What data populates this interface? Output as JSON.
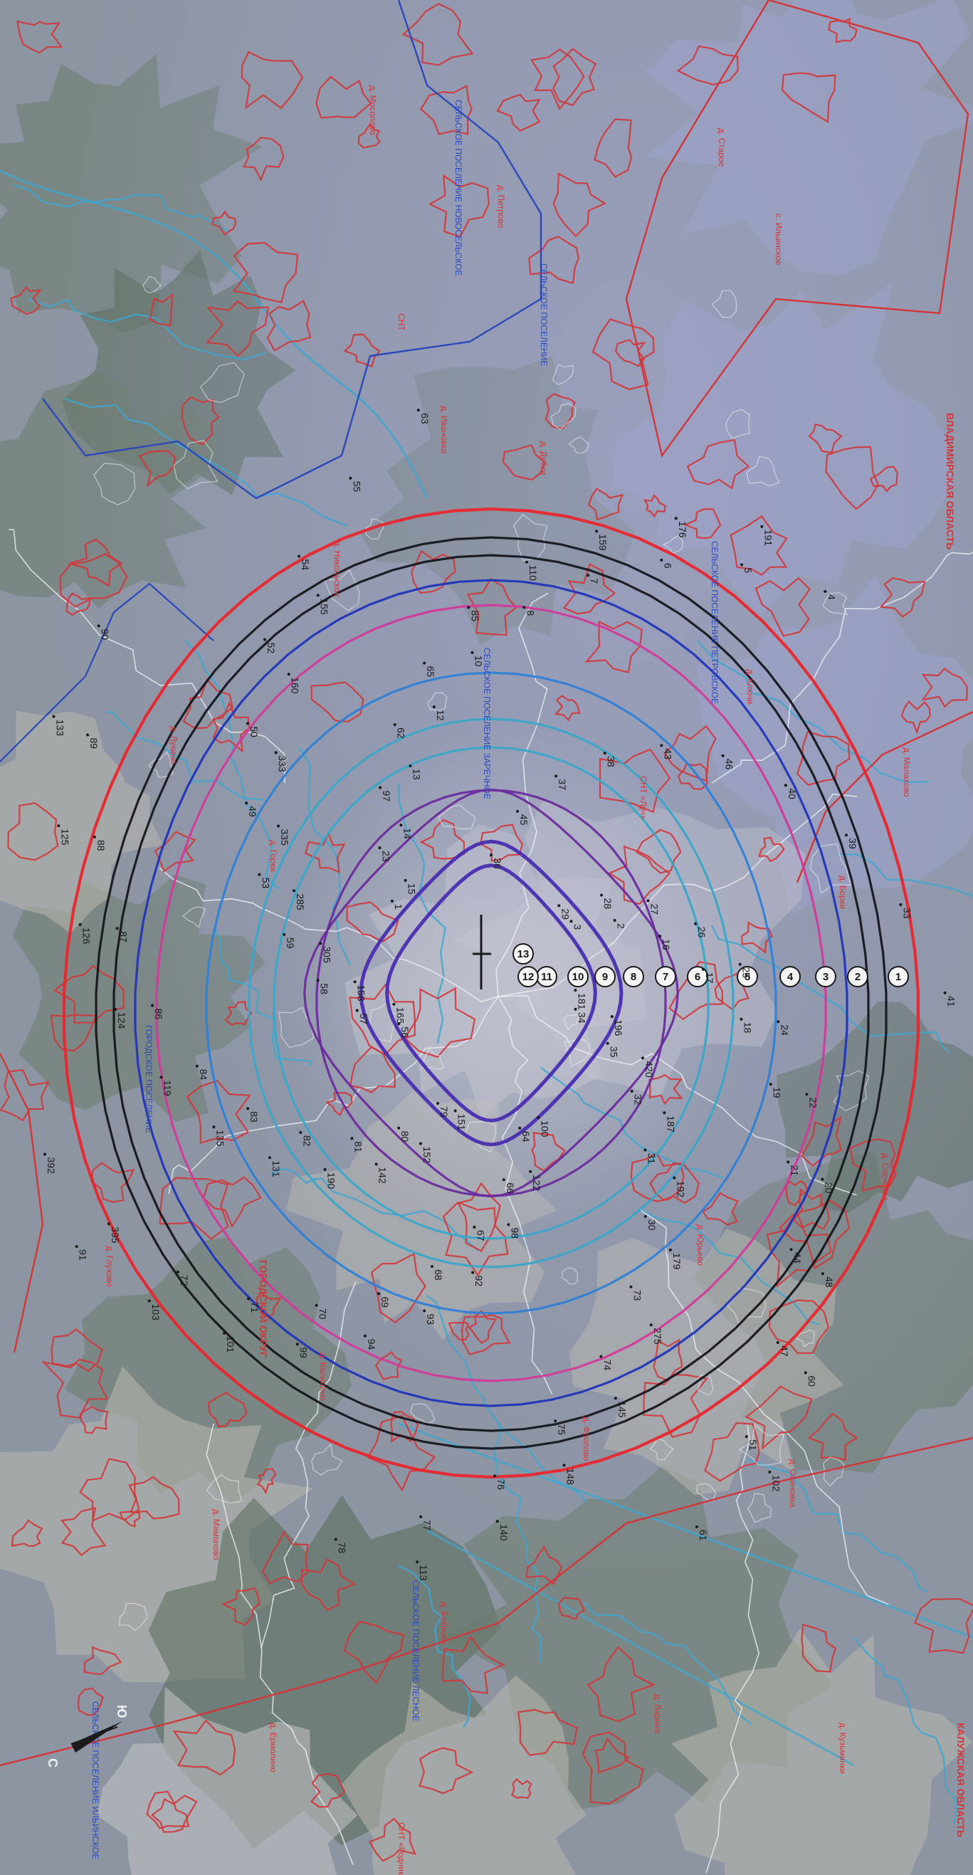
{
  "colors": {
    "background": "#8d95a3",
    "background_lavender": "#9ba0c6",
    "forest": "#6d7c6e",
    "forest_dark": "#5a6b5a",
    "field": "#b9b8ad",
    "settlement": "#c2c3c4",
    "water": "#3fa6cf",
    "boundary_red": "#d2363a",
    "boundary_blue": "#2c49b9",
    "contour_red": "#e8262d",
    "contour_black": "#16161e",
    "contour_navy": "#2035b9",
    "contour_magenta": "#d13a9a",
    "contour_blue": "#2f7fd6",
    "contour_cyan": "#3aa7c9",
    "contour_purple": "#6b2c9e",
    "contour_inner": "#4a2db0",
    "road_white": "#eef0f2",
    "label_red": "#d2363a",
    "label_blue": "#2c49b9",
    "label_black": "#1a1a1a",
    "badge_fill": "#f4f4f4"
  },
  "contours": [
    {
      "color": "contour_red",
      "level": 1
    },
    {
      "color": "contour_black",
      "level": 2
    },
    {
      "color": "contour_black",
      "level": 3
    },
    {
      "color": "contour_navy",
      "level": 4
    },
    {
      "color": "contour_magenta",
      "level": 5
    },
    {
      "color": "contour_blue",
      "level": 6
    },
    {
      "color": "contour_cyan",
      "level": 7
    },
    {
      "color": "contour_cyan",
      "level": 8
    },
    {
      "color": "contour_purple",
      "level": 9
    },
    {
      "color": "contour_purple",
      "level": 10
    },
    {
      "color": "contour_inner",
      "level": 11
    },
    {
      "color": "contour_inner",
      "level": 12
    }
  ],
  "contour_badges": [
    "1",
    "2",
    "3",
    "4",
    "5",
    "6",
    "7",
    "8",
    "9",
    "10",
    "11",
    "12",
    "13"
  ],
  "point_labels": [
    "181",
    "196",
    "420",
    "187",
    "192",
    "179",
    "275",
    "145",
    "148",
    "140",
    "113",
    "151",
    "152",
    "142",
    "190",
    "131",
    "135",
    "119",
    "124",
    "126",
    "125",
    "133",
    "1",
    "23",
    "97",
    "62",
    "65",
    "85",
    "110",
    "159",
    "176",
    "191",
    "29",
    "28",
    "27",
    "26",
    "25",
    "24",
    "22",
    "20",
    "48",
    "60",
    "102",
    "100",
    "122",
    "98",
    "92",
    "93",
    "94",
    "99",
    "101",
    "103",
    "91",
    "56",
    "57",
    "58",
    "59",
    "53",
    "49",
    "50",
    "52",
    "54",
    "55",
    "63",
    "36",
    "45",
    "37",
    "38",
    "43",
    "46",
    "40",
    "39",
    "33",
    "41",
    "34",
    "35",
    "32",
    "31",
    "30",
    "73",
    "74",
    "75",
    "76",
    "77",
    "78",
    "79",
    "80",
    "81",
    "82",
    "83",
    "84",
    "86",
    "87",
    "88",
    "89",
    "90",
    "15",
    "14",
    "13",
    "12",
    "10",
    "8",
    "7",
    "6",
    "5",
    "4",
    "3",
    "2",
    "16",
    "17",
    "18",
    "19",
    "21",
    "44",
    "47",
    "51",
    "61",
    "64",
    "66",
    "67",
    "68",
    "69",
    "70",
    "71",
    "72",
    "395",
    "392",
    "165",
    "158",
    "305",
    "285",
    "335",
    "333",
    "160",
    "155"
  ],
  "area_labels_red": [
    "д. Мосолово",
    "д. Петрово",
    "СНТ",
    "д. Ивановка",
    "д. Никольское",
    "д. Старое",
    "с. Ильинское",
    "д. Лукино",
    "д. Горки",
    "СНТ «Луч»",
    "д. Борки",
    "д. Сосновка",
    "д. Юрьево",
    "д. Калинино",
    "д. Мамоново",
    "д. Фролово",
    "д. Осиновка",
    "д. Бобково",
    "д. Ларино",
    "д. Кузьминки",
    "д. Ермолино",
    "СНТ «Родник»",
    "д. Глухово",
    "д. Ключи",
    "д. Малахово",
    "д. Дубки"
  ],
  "area_labels_blue": [
    "СЕЛЬСКОЕ ПОСЕЛЕНИЕ НОВОСЕЛЬСКОЕ",
    "СЕЛЬСКОЕ ПОСЕЛЕНИЕ",
    "СЕЛЬСКОЕ ПОСЕЛЕНИЕ ЗАРЕЧНОЕ",
    "ГОРОДСКОЕ ПОСЕЛЕНИЕ",
    "СЕЛЬСКОЕ ПОСЕЛЕНИЕ ПЕТРОВСКОЕ",
    "СЕЛЬСКОЕ ПОСЕЛЕНИЕ ЛЕСНОЕ",
    "СЕЛЬСКОЕ ПОСЕЛЕНИЕ ИЛЬИНСКОЕ"
  ],
  "region_labels": [
    "ВЛАДИМИРСКАЯ ОБЛАСТЬ",
    "КАЛУЖСКАЯ ОБЛАСТЬ",
    "ГОРОДСКОЙ ОКРУГ"
  ],
  "north_arrow": {
    "north": "С",
    "south": "Ю"
  }
}
